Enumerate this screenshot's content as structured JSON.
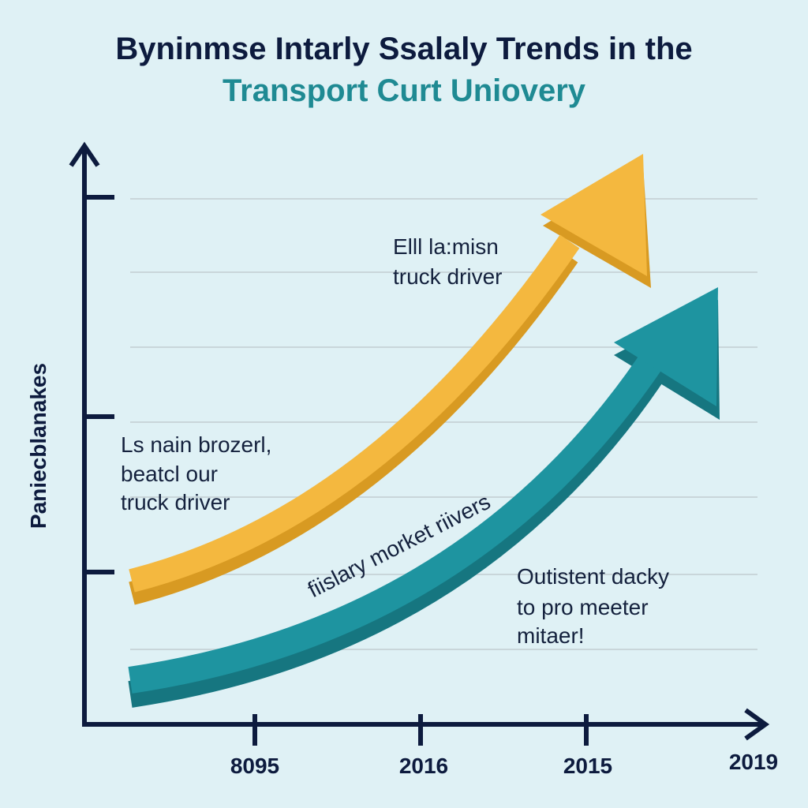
{
  "title": {
    "line1": "Byninmse Intarly Ssalaly Trends in the",
    "line2": "Transport Curt Uniovery"
  },
  "axes": {
    "y_label": "Paniecblanakes",
    "x_labels": [
      "8095",
      "2016",
      "2015",
      "2019"
    ]
  },
  "annotations": [
    {
      "lines": [
        "Elll la:misn",
        "truck driver"
      ]
    },
    {
      "lines": [
        "Ls nain brozerl,",
        "beatcl our",
        "truck driver"
      ]
    },
    {
      "lines": [
        "fiislary morket riivers"
      ]
    },
    {
      "lines": [
        "Outistent dacky",
        "to pro meeter",
        "mitaer!"
      ]
    }
  ]
}
